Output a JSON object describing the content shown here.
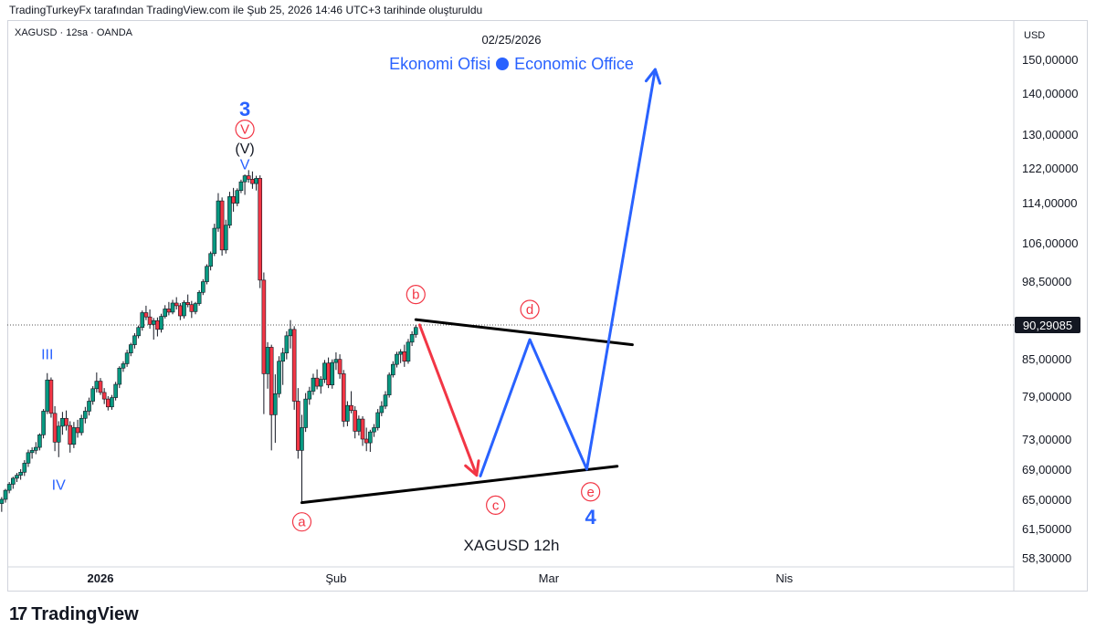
{
  "header": {
    "published_by": "TradingTurkeyFx tarafından TradingView.com ile Şub 25, 2026 14:46 UTC+3 tarihinde oluşturuldu"
  },
  "symbol_line": "XAGUSD · 12sa · OANDA",
  "date_stamp": "02/25/2026",
  "watermark": {
    "left": "Ekonomi Ofisi",
    "right": "Economic Office"
  },
  "footer": {
    "logo_text": "TradingView",
    "logo_mark": "17"
  },
  "chart_data": {
    "type": "candlestick",
    "symbol": "XAGUSD",
    "timeframe": "12h",
    "currency": "USD",
    "current_price": 90.29085,
    "current_price_label": "90,29085",
    "axis_label": "USD",
    "y_ticks": [
      {
        "value": 150,
        "label": "150,00000"
      },
      {
        "value": 140,
        "label": "140,00000"
      },
      {
        "value": 130,
        "label": "130,00000"
      },
      {
        "value": 122,
        "label": "122,00000"
      },
      {
        "value": 114,
        "label": "114,00000"
      },
      {
        "value": 106,
        "label": "106,00000"
      },
      {
        "value": 98.5,
        "label": "98,50000"
      },
      {
        "value": 85,
        "label": "85,00000"
      },
      {
        "value": 79,
        "label": "79,00000"
      },
      {
        "value": 73,
        "label": "73,00000"
      },
      {
        "value": 69,
        "label": "69,00000"
      },
      {
        "value": 65,
        "label": "65,00000"
      },
      {
        "value": 61.5,
        "label": "61,50000"
      },
      {
        "value": 58.3,
        "label": "58,30000"
      }
    ],
    "x_ticks": [
      {
        "date": "2026-01-01",
        "label": "2026"
      },
      {
        "date": "2026-02-01",
        "label": "Şub"
      },
      {
        "date": "2026-03-01",
        "label": "Mar"
      },
      {
        "date": "2026-04-01",
        "label": "Nis"
      }
    ],
    "bottom_caption": "XAGUSD   12h",
    "ohlc": [
      {
        "date": "2025-12-19T00:00",
        "o": 64.5,
        "h": 65.3,
        "l": 63.5,
        "c": 65.0
      },
      {
        "date": "2025-12-19T12:00",
        "o": 65.0,
        "h": 66.4,
        "l": 64.6,
        "c": 66.2
      },
      {
        "date": "2025-12-20T00:00",
        "o": 66.2,
        "h": 67.3,
        "l": 65.8,
        "c": 67.0
      },
      {
        "date": "2025-12-20T12:00",
        "o": 67.0,
        "h": 68.0,
        "l": 66.4,
        "c": 67.8
      },
      {
        "date": "2025-12-21T00:00",
        "o": 67.8,
        "h": 68.5,
        "l": 67.3,
        "c": 68.2
      },
      {
        "date": "2025-12-21T12:00",
        "o": 68.2,
        "h": 69.0,
        "l": 67.6,
        "c": 68.6
      },
      {
        "date": "2025-12-22T00:00",
        "o": 68.6,
        "h": 70.2,
        "l": 68.1,
        "c": 69.8
      },
      {
        "date": "2025-12-22T12:00",
        "o": 69.8,
        "h": 71.6,
        "l": 69.3,
        "c": 71.2
      },
      {
        "date": "2025-12-23T00:00",
        "o": 71.2,
        "h": 71.9,
        "l": 70.4,
        "c": 71.5
      },
      {
        "date": "2025-12-23T12:00",
        "o": 71.5,
        "h": 72.6,
        "l": 71.0,
        "c": 71.9
      },
      {
        "date": "2025-12-24T00:00",
        "o": 71.9,
        "h": 73.8,
        "l": 71.5,
        "c": 73.6
      },
      {
        "date": "2025-12-24T12:00",
        "o": 73.6,
        "h": 77.2,
        "l": 73.1,
        "c": 76.9
      },
      {
        "date": "2025-12-25T00:00",
        "o": 76.9,
        "h": 82.7,
        "l": 76.5,
        "c": 81.6
      },
      {
        "date": "2025-12-25T12:00",
        "o": 81.6,
        "h": 82.0,
        "l": 76.0,
        "c": 76.6
      },
      {
        "date": "2025-12-26T00:00",
        "o": 76.6,
        "h": 77.6,
        "l": 71.4,
        "c": 72.6
      },
      {
        "date": "2025-12-26T12:00",
        "o": 72.6,
        "h": 75.5,
        "l": 70.6,
        "c": 74.8
      },
      {
        "date": "2025-12-27T00:00",
        "o": 74.8,
        "h": 76.8,
        "l": 73.6,
        "c": 75.9
      },
      {
        "date": "2025-12-27T12:00",
        "o": 75.9,
        "h": 77.0,
        "l": 74.2,
        "c": 74.9
      },
      {
        "date": "2025-12-28T00:00",
        "o": 74.9,
        "h": 75.5,
        "l": 71.2,
        "c": 72.3
      },
      {
        "date": "2025-12-28T12:00",
        "o": 72.3,
        "h": 75.4,
        "l": 71.8,
        "c": 74.6
      },
      {
        "date": "2025-12-29T00:00",
        "o": 74.6,
        "h": 75.7,
        "l": 73.2,
        "c": 73.9
      },
      {
        "date": "2025-12-29T12:00",
        "o": 73.9,
        "h": 76.4,
        "l": 73.5,
        "c": 75.9
      },
      {
        "date": "2025-12-30T00:00",
        "o": 75.9,
        "h": 77.5,
        "l": 75.2,
        "c": 76.9
      },
      {
        "date": "2025-12-30T12:00",
        "o": 76.9,
        "h": 78.8,
        "l": 76.3,
        "c": 78.3
      },
      {
        "date": "2025-12-31T00:00",
        "o": 78.3,
        "h": 80.6,
        "l": 77.8,
        "c": 80.2
      },
      {
        "date": "2025-12-31T12:00",
        "o": 80.2,
        "h": 82.8,
        "l": 79.6,
        "c": 81.4
      },
      {
        "date": "2026-01-01T00:00",
        "o": 81.4,
        "h": 81.9,
        "l": 79.2,
        "c": 79.6
      },
      {
        "date": "2026-01-01T12:00",
        "o": 79.6,
        "h": 80.3,
        "l": 77.9,
        "c": 78.6
      },
      {
        "date": "2026-01-02T00:00",
        "o": 78.6,
        "h": 79.0,
        "l": 77.0,
        "c": 77.5
      },
      {
        "date": "2026-01-02T12:00",
        "o": 77.5,
        "h": 79.2,
        "l": 77.1,
        "c": 78.8
      },
      {
        "date": "2026-01-03T00:00",
        "o": 78.8,
        "h": 81.3,
        "l": 78.4,
        "c": 80.9
      },
      {
        "date": "2026-01-03T12:00",
        "o": 80.9,
        "h": 83.8,
        "l": 80.3,
        "c": 83.5
      },
      {
        "date": "2026-01-04T00:00",
        "o": 83.5,
        "h": 84.6,
        "l": 82.9,
        "c": 84.2
      },
      {
        "date": "2026-01-04T12:00",
        "o": 84.2,
        "h": 86.4,
        "l": 83.7,
        "c": 85.9
      },
      {
        "date": "2026-01-05T00:00",
        "o": 85.9,
        "h": 87.5,
        "l": 85.4,
        "c": 87.2
      },
      {
        "date": "2026-01-05T12:00",
        "o": 87.2,
        "h": 89.0,
        "l": 86.6,
        "c": 88.6
      },
      {
        "date": "2026-01-06T00:00",
        "o": 88.6,
        "h": 90.2,
        "l": 88.2,
        "c": 89.9
      },
      {
        "date": "2026-01-06T12:00",
        "o": 89.9,
        "h": 93.0,
        "l": 89.4,
        "c": 92.6
      },
      {
        "date": "2026-01-07T00:00",
        "o": 92.6,
        "h": 93.9,
        "l": 91.2,
        "c": 91.8
      },
      {
        "date": "2026-01-07T12:00",
        "o": 91.8,
        "h": 93.2,
        "l": 89.7,
        "c": 90.4
      },
      {
        "date": "2026-01-08T00:00",
        "o": 90.4,
        "h": 91.6,
        "l": 88.0,
        "c": 91.1
      },
      {
        "date": "2026-01-08T12:00",
        "o": 91.1,
        "h": 91.7,
        "l": 88.5,
        "c": 89.6
      },
      {
        "date": "2026-01-09T00:00",
        "o": 89.6,
        "h": 92.4,
        "l": 89.1,
        "c": 91.9
      },
      {
        "date": "2026-01-09T12:00",
        "o": 91.9,
        "h": 94.0,
        "l": 91.5,
        "c": 93.3
      },
      {
        "date": "2026-01-10T00:00",
        "o": 93.3,
        "h": 94.6,
        "l": 92.1,
        "c": 92.7
      },
      {
        "date": "2026-01-10T12:00",
        "o": 92.7,
        "h": 95.0,
        "l": 92.3,
        "c": 94.4
      },
      {
        "date": "2026-01-11T00:00",
        "o": 94.4,
        "h": 95.5,
        "l": 93.2,
        "c": 93.9
      },
      {
        "date": "2026-01-11T12:00",
        "o": 93.9,
        "h": 94.4,
        "l": 91.2,
        "c": 92.0
      },
      {
        "date": "2026-01-12T00:00",
        "o": 92.0,
        "h": 94.9,
        "l": 91.5,
        "c": 94.5
      },
      {
        "date": "2026-01-12T12:00",
        "o": 94.5,
        "h": 96.0,
        "l": 93.6,
        "c": 94.1
      },
      {
        "date": "2026-01-13T00:00",
        "o": 94.1,
        "h": 94.8,
        "l": 91.6,
        "c": 92.8
      },
      {
        "date": "2026-01-13T12:00",
        "o": 92.8,
        "h": 94.6,
        "l": 92.3,
        "c": 94.3
      },
      {
        "date": "2026-01-14T00:00",
        "o": 94.3,
        "h": 96.8,
        "l": 93.9,
        "c": 96.4
      },
      {
        "date": "2026-01-14T12:00",
        "o": 96.4,
        "h": 98.9,
        "l": 95.9,
        "c": 98.4
      },
      {
        "date": "2026-01-15T00:00",
        "o": 98.4,
        "h": 101.8,
        "l": 97.9,
        "c": 101.4
      },
      {
        "date": "2026-01-15T12:00",
        "o": 101.4,
        "h": 104.3,
        "l": 100.6,
        "c": 103.9
      },
      {
        "date": "2026-01-16T00:00",
        "o": 103.9,
        "h": 109.8,
        "l": 103.4,
        "c": 108.9
      },
      {
        "date": "2026-01-16T12:00",
        "o": 108.9,
        "h": 116.2,
        "l": 108.2,
        "c": 114.4
      },
      {
        "date": "2026-01-17T00:00",
        "o": 114.4,
        "h": 115.2,
        "l": 103.5,
        "c": 104.6
      },
      {
        "date": "2026-01-17T12:00",
        "o": 104.6,
        "h": 110.6,
        "l": 103.9,
        "c": 109.5
      },
      {
        "date": "2026-01-18T00:00",
        "o": 109.5,
        "h": 116.5,
        "l": 108.9,
        "c": 115.4
      },
      {
        "date": "2026-01-18T12:00",
        "o": 115.4,
        "h": 117.4,
        "l": 112.2,
        "c": 113.9
      },
      {
        "date": "2026-01-19T00:00",
        "o": 113.9,
        "h": 117.3,
        "l": 113.3,
        "c": 116.8
      },
      {
        "date": "2026-01-19T12:00",
        "o": 116.8,
        "h": 119.3,
        "l": 116.2,
        "c": 118.8
      },
      {
        "date": "2026-01-20T00:00",
        "o": 118.8,
        "h": 120.5,
        "l": 115.8,
        "c": 120.2
      },
      {
        "date": "2026-01-20T12:00",
        "o": 120.2,
        "h": 121.5,
        "l": 118.6,
        "c": 119.4
      },
      {
        "date": "2026-01-21T00:00",
        "o": 119.4,
        "h": 121.2,
        "l": 117.2,
        "c": 118.4
      },
      {
        "date": "2026-01-21T12:00",
        "o": 118.4,
        "h": 120.2,
        "l": 116.8,
        "c": 119.6
      },
      {
        "date": "2026-01-22T00:00",
        "o": 119.6,
        "h": 120.3,
        "l": 97.2,
        "c": 98.7
      },
      {
        "date": "2026-01-22T12:00",
        "o": 98.7,
        "h": 100.2,
        "l": 76.5,
        "c": 82.6
      },
      {
        "date": "2026-01-23T00:00",
        "o": 82.6,
        "h": 87.6,
        "l": 80.2,
        "c": 86.8
      },
      {
        "date": "2026-01-23T12:00",
        "o": 86.8,
        "h": 87.2,
        "l": 71.5,
        "c": 76.4
      },
      {
        "date": "2026-01-24T00:00",
        "o": 76.4,
        "h": 82.5,
        "l": 72.5,
        "c": 79.4
      },
      {
        "date": "2026-01-24T12:00",
        "o": 79.4,
        "h": 85.4,
        "l": 78.8,
        "c": 84.6
      },
      {
        "date": "2026-01-25T00:00",
        "o": 84.6,
        "h": 86.7,
        "l": 80.8,
        "c": 85.9
      },
      {
        "date": "2026-01-25T12:00",
        "o": 85.9,
        "h": 89.3,
        "l": 84.9,
        "c": 88.6
      },
      {
        "date": "2026-01-26T00:00",
        "o": 88.6,
        "h": 91.2,
        "l": 86.6,
        "c": 89.6
      },
      {
        "date": "2026-01-26T12:00",
        "o": 89.6,
        "h": 90.1,
        "l": 77.1,
        "c": 78.3
      },
      {
        "date": "2026-01-27T00:00",
        "o": 78.3,
        "h": 80.3,
        "l": 70.4,
        "c": 71.5
      },
      {
        "date": "2026-01-27T12:00",
        "o": 71.5,
        "h": 76.4,
        "l": 64.5,
        "c": 74.6
      },
      {
        "date": "2026-01-28T00:00",
        "o": 74.6,
        "h": 79.5,
        "l": 74.0,
        "c": 78.6
      },
      {
        "date": "2026-01-28T12:00",
        "o": 78.6,
        "h": 80.5,
        "l": 77.8,
        "c": 79.8
      },
      {
        "date": "2026-01-29T00:00",
        "o": 79.8,
        "h": 82.6,
        "l": 79.2,
        "c": 81.9
      },
      {
        "date": "2026-01-29T12:00",
        "o": 81.9,
        "h": 83.3,
        "l": 80.1,
        "c": 80.6
      },
      {
        "date": "2026-01-30T00:00",
        "o": 80.6,
        "h": 82.2,
        "l": 79.4,
        "c": 81.7
      },
      {
        "date": "2026-01-30T12:00",
        "o": 81.7,
        "h": 84.8,
        "l": 81.1,
        "c": 84.3
      },
      {
        "date": "2026-01-31T00:00",
        "o": 84.3,
        "h": 85.2,
        "l": 80.3,
        "c": 80.8
      },
      {
        "date": "2026-01-31T12:00",
        "o": 80.8,
        "h": 84.9,
        "l": 80.2,
        "c": 84.4
      },
      {
        "date": "2026-02-01T00:00",
        "o": 84.4,
        "h": 86.0,
        "l": 83.2,
        "c": 84.9
      },
      {
        "date": "2026-02-01T12:00",
        "o": 84.9,
        "h": 85.7,
        "l": 81.8,
        "c": 82.6
      },
      {
        "date": "2026-02-02T00:00",
        "o": 82.6,
        "h": 83.2,
        "l": 74.7,
        "c": 75.5
      },
      {
        "date": "2026-02-02T12:00",
        "o": 75.5,
        "h": 78.3,
        "l": 74.8,
        "c": 77.7
      },
      {
        "date": "2026-02-03T00:00",
        "o": 77.7,
        "h": 79.8,
        "l": 76.6,
        "c": 77.0
      },
      {
        "date": "2026-02-03T12:00",
        "o": 77.0,
        "h": 77.6,
        "l": 73.1,
        "c": 74.1
      },
      {
        "date": "2026-02-04T00:00",
        "o": 74.1,
        "h": 76.3,
        "l": 73.5,
        "c": 75.8
      },
      {
        "date": "2026-02-04T12:00",
        "o": 75.8,
        "h": 76.2,
        "l": 72.1,
        "c": 73.0
      },
      {
        "date": "2026-02-05T00:00",
        "o": 73.0,
        "h": 74.6,
        "l": 71.4,
        "c": 72.5
      },
      {
        "date": "2026-02-05T12:00",
        "o": 72.5,
        "h": 74.3,
        "l": 71.3,
        "c": 74.0
      },
      {
        "date": "2026-02-06T00:00",
        "o": 74.0,
        "h": 75.1,
        "l": 73.3,
        "c": 74.6
      },
      {
        "date": "2026-02-06T12:00",
        "o": 74.6,
        "h": 77.2,
        "l": 74.2,
        "c": 76.7
      },
      {
        "date": "2026-02-07T00:00",
        "o": 76.7,
        "h": 78.3,
        "l": 76.2,
        "c": 77.6
      },
      {
        "date": "2026-02-07T12:00",
        "o": 77.6,
        "h": 79.8,
        "l": 77.2,
        "c": 79.2
      },
      {
        "date": "2026-02-08T00:00",
        "o": 79.2,
        "h": 82.8,
        "l": 78.8,
        "c": 82.4
      },
      {
        "date": "2026-02-08T12:00",
        "o": 82.4,
        "h": 84.6,
        "l": 82.0,
        "c": 84.1
      },
      {
        "date": "2026-02-09T00:00",
        "o": 84.1,
        "h": 86.1,
        "l": 83.6,
        "c": 85.7
      },
      {
        "date": "2026-02-09T12:00",
        "o": 85.7,
        "h": 86.5,
        "l": 84.3,
        "c": 86.1
      },
      {
        "date": "2026-02-10T00:00",
        "o": 86.1,
        "h": 87.2,
        "l": 83.7,
        "c": 84.6
      },
      {
        "date": "2026-02-10T12:00",
        "o": 84.6,
        "h": 88.1,
        "l": 84.2,
        "c": 87.6
      },
      {
        "date": "2026-02-11T00:00",
        "o": 87.6,
        "h": 89.3,
        "l": 87.0,
        "c": 88.8
      },
      {
        "date": "2026-02-11T12:00",
        "o": 88.8,
        "h": 90.3,
        "l": 88.3,
        "c": 89.9
      }
    ],
    "annotations": [
      {
        "text": "3",
        "color": "#2962ff",
        "style": "bold",
        "date": "2026-01-20T00:00",
        "price": 135.8
      },
      {
        "text": "V",
        "color": "#f23645",
        "style": "circled",
        "date": "2026-01-20T00:00",
        "price": 131.2
      },
      {
        "text": "(V)",
        "color": "#131722",
        "style": "plain",
        "date": "2026-01-20T00:00",
        "price": 126.8
      },
      {
        "text": "V",
        "color": "#2962ff",
        "style": "plain",
        "date": "2026-01-20T00:00",
        "price": 123.0
      },
      {
        "text": "III",
        "color": "#2962ff",
        "style": "plain",
        "date": "2025-12-25T00:00",
        "price": 85.8
      },
      {
        "text": "IV",
        "color": "#2962ff",
        "style": "plain",
        "date": "2025-12-26T12:00",
        "price": 67.0
      },
      {
        "text": "a",
        "color": "#f23645",
        "style": "circled",
        "date": "2026-01-27T12:00",
        "price": 62.3
      },
      {
        "text": "b",
        "color": "#f23645",
        "style": "circled",
        "date": "2026-02-11T12:00",
        "price": 96.0
      },
      {
        "text": "c",
        "color": "#f23645",
        "style": "circled",
        "date": "2026-02-22T00:00",
        "price": 64.3
      },
      {
        "text": "d",
        "color": "#f23645",
        "style": "circled",
        "date": "2026-02-26T12:00",
        "price": 93.2
      },
      {
        "text": "e",
        "color": "#f23645",
        "style": "circled",
        "date": "2026-03-06T12:00",
        "price": 66.0
      },
      {
        "text": "4",
        "color": "#2962ff",
        "style": "bold",
        "date": "2026-03-06T12:00",
        "price": 62.7
      }
    ],
    "drawings": {
      "triangle_upper": {
        "color": "#000000",
        "points": [
          {
            "date": "2026-02-11T12:00",
            "price": 91.3
          },
          {
            "date": "2026-03-12T00:00",
            "price": 87.2
          }
        ]
      },
      "triangle_lower": {
        "color": "#000000",
        "points": [
          {
            "date": "2026-01-27T12:00",
            "price": 64.6
          },
          {
            "date": "2026-03-10T00:00",
            "price": 69.4
          }
        ]
      },
      "projection_down": {
        "color": "#f23645",
        "points": [
          {
            "date": "2026-02-12T00:00",
            "price": 90.3
          },
          {
            "date": "2026-02-19T12:00",
            "price": 68.2
          }
        ]
      },
      "projection_path": {
        "color": "#2962ff",
        "points": [
          {
            "date": "2026-02-20T00:00",
            "price": 68.1
          },
          {
            "date": "2026-02-26T12:00",
            "price": 88.0
          },
          {
            "date": "2026-03-06T00:00",
            "price": 69.0
          },
          {
            "date": "2026-03-15T00:00",
            "price": 147.0
          }
        ]
      }
    }
  }
}
